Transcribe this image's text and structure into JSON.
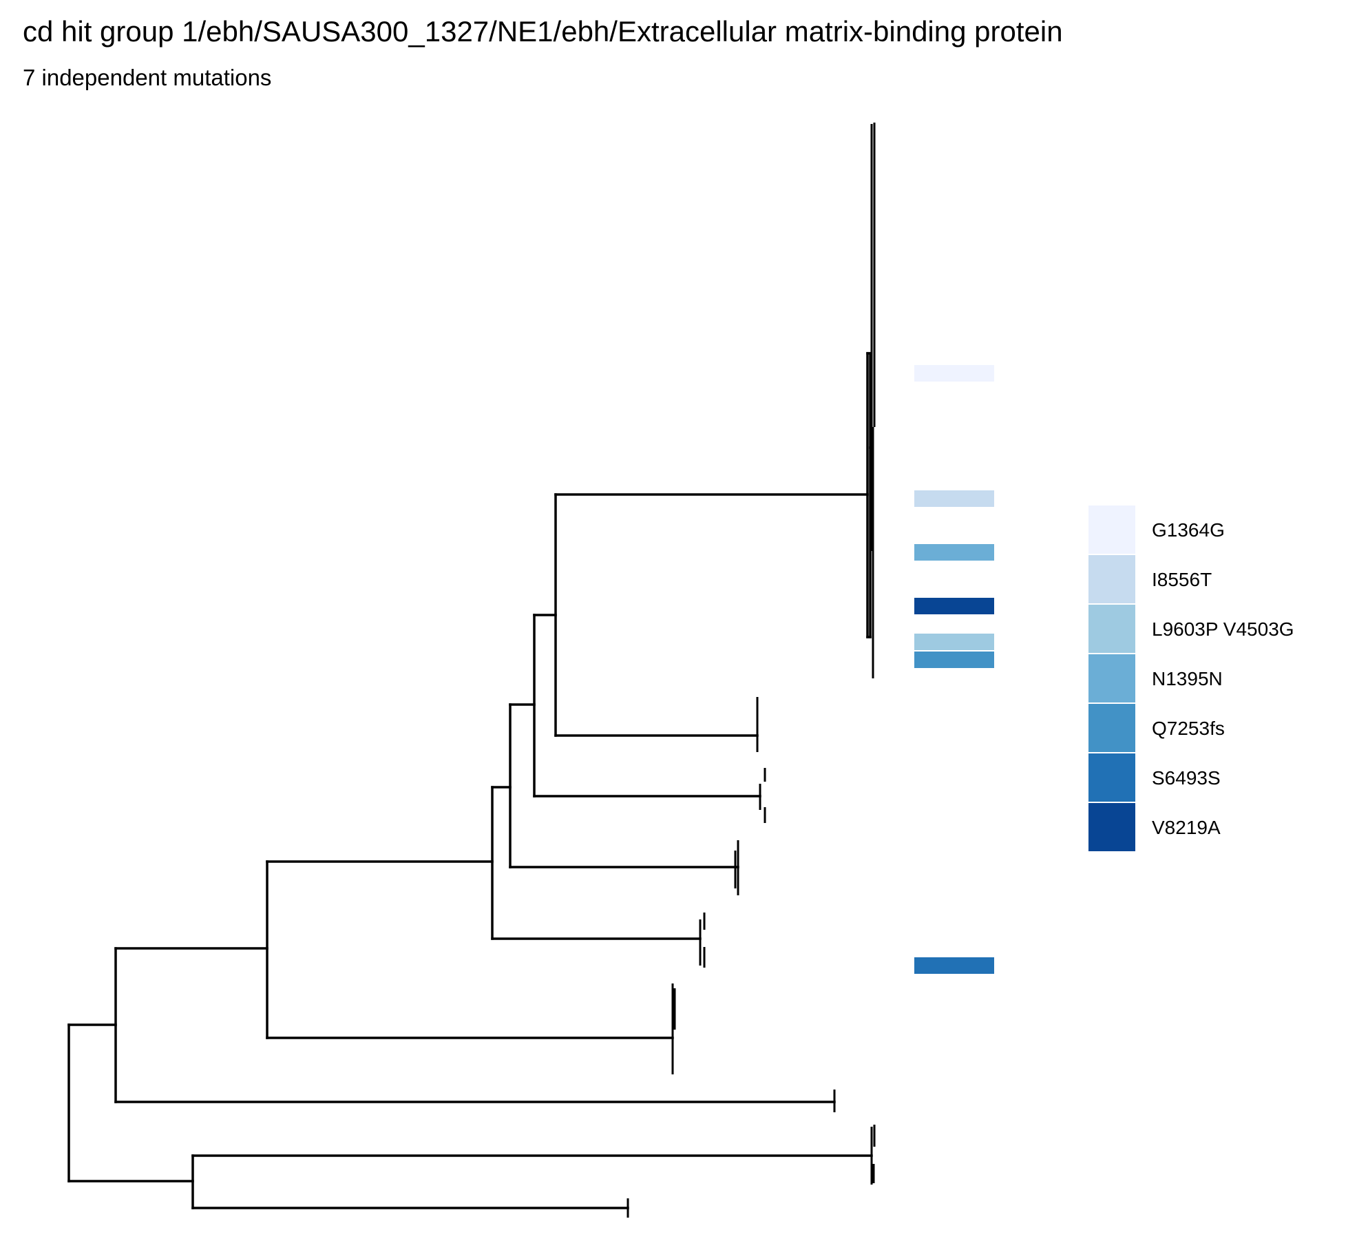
{
  "title": "cd hit group 1/ebh/SAUSA300_1327/NE1/ebh/Extracellular matrix-binding protein",
  "subtitle": "7 independent mutations",
  "legend": {
    "items": [
      {
        "label": "G1364G",
        "color": "#eff3ff"
      },
      {
        "label": "I8556T",
        "color": "#c6dbef"
      },
      {
        "label": "L9603P V4503G",
        "color": "#9ecae1"
      },
      {
        "label": "N1395N",
        "color": "#6baed6"
      },
      {
        "label": "Q7253fs",
        "color": "#4292c6"
      },
      {
        "label": "S6493S",
        "color": "#2171b5"
      },
      {
        "label": "V8219A",
        "color": "#084594"
      }
    ]
  },
  "mutation_marks": [
    {
      "mutation": "G1364G",
      "color": "#eff3ff"
    },
    {
      "mutation": "I8556T",
      "color": "#c6dbef"
    },
    {
      "mutation": "N1395N",
      "color": "#6baed6"
    },
    {
      "mutation": "V8219A",
      "color": "#084594"
    },
    {
      "mutation": "L9603P V4503G",
      "color": "#9ecae1"
    },
    {
      "mutation": "Q7253fs",
      "color": "#4292c6"
    },
    {
      "mutation": "S6493S",
      "color": "#2171b5"
    }
  ]
}
